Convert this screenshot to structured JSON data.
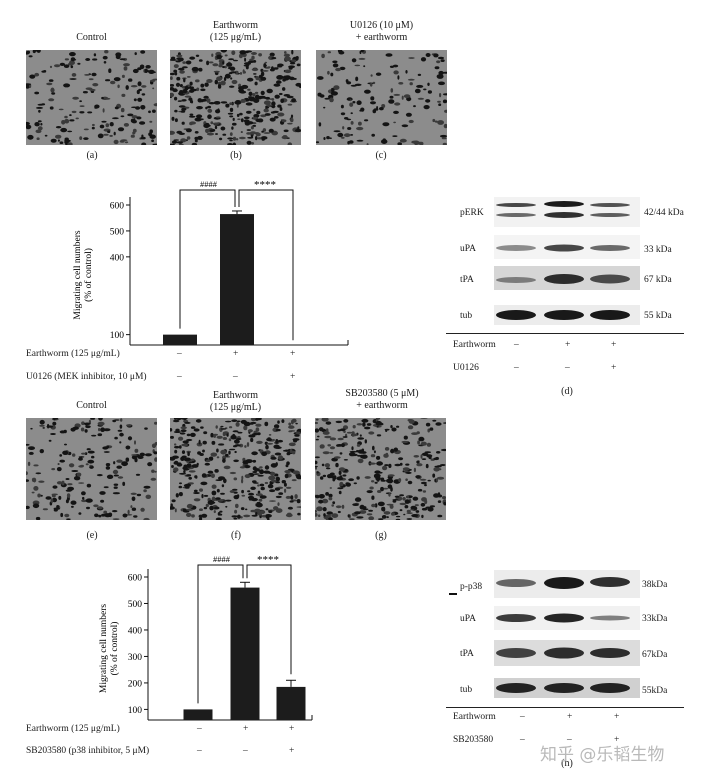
{
  "top_micrographs": {
    "col_labels": [
      "Control",
      "Earthworm\n(125 μg/mL)",
      "U0126 (10 μM)\n+ earthworm"
    ],
    "sub_labels": [
      "(a)",
      "(b)",
      "(c)"
    ]
  },
  "bottom_micrographs": {
    "col_labels": [
      "Control",
      "Earthworm\n(125 μg/mL)",
      "SB203580 (5 μM)\n+ earthworm"
    ],
    "sub_labels": [
      "(e)",
      "(f)",
      "(g)"
    ]
  },
  "chart_data": [
    {
      "type": "bar",
      "panel": "top",
      "ylabel": "Migrating cell numbers\n(% of control)",
      "yticks": [
        100,
        400,
        500,
        600
      ],
      "categories": [
        "Control",
        "Earthworm",
        "U0126 + earthworm"
      ],
      "values": [
        100,
        565,
        55
      ],
      "errors": [
        0,
        12,
        0
      ],
      "sig_labels": [
        "####",
        "****"
      ],
      "treatment_rows": [
        {
          "label": "Earthworm (125 μg/mL)",
          "marks": [
            "–",
            "+",
            "+"
          ]
        },
        {
          "label": "U0126 (MEK inhibitor, 10 μM)",
          "marks": [
            "–",
            "–",
            "+"
          ]
        }
      ]
    },
    {
      "type": "bar",
      "panel": "bottom",
      "ylabel": "Migrating cell numbers\n(% of control)",
      "yticks": [
        100,
        200,
        300,
        400,
        500,
        600
      ],
      "categories": [
        "Control",
        "Earthworm",
        "SB203580 + earthworm"
      ],
      "values": [
        100,
        560,
        185
      ],
      "errors": [
        0,
        20,
        25
      ],
      "sig_labels": [
        "####",
        "****"
      ],
      "treatment_rows": [
        {
          "label": "Earthworm (125 μg/mL)",
          "marks": [
            "–",
            "+",
            "+"
          ]
        },
        {
          "label": "SB203580 (p38 inhibitor, 5 μM)",
          "marks": [
            "–",
            "–",
            "+"
          ]
        }
      ]
    }
  ],
  "western_top": {
    "rows": [
      {
        "name": "pERK",
        "kda": "42/44 kDa"
      },
      {
        "name": "uPA",
        "kda": "33 kDa"
      },
      {
        "name": "tPA",
        "kda": "67 kDa"
      },
      {
        "name": "tub",
        "kda": "55 kDa"
      }
    ],
    "treatments": [
      {
        "label": "Earthworm",
        "marks": [
          "–",
          "+",
          "+"
        ]
      },
      {
        "label": "U0126",
        "marks": [
          "–",
          "–",
          "+"
        ]
      }
    ],
    "sub_label": "(d)"
  },
  "western_bottom": {
    "rows": [
      {
        "name": "p-p38",
        "kda": "38kDa"
      },
      {
        "name": "uPA",
        "kda": "33kDa"
      },
      {
        "name": "tPA",
        "kda": "67kDa"
      },
      {
        "name": "tub",
        "kda": "55kDa"
      }
    ],
    "treatments": [
      {
        "label": "Earthworm",
        "marks": [
          "–",
          "+",
          "+"
        ]
      },
      {
        "label": "SB203580",
        "marks": [
          "–",
          "–",
          "+"
        ]
      }
    ],
    "sub_label": "(h)"
  },
  "watermark": "知乎 @乐韬生物"
}
